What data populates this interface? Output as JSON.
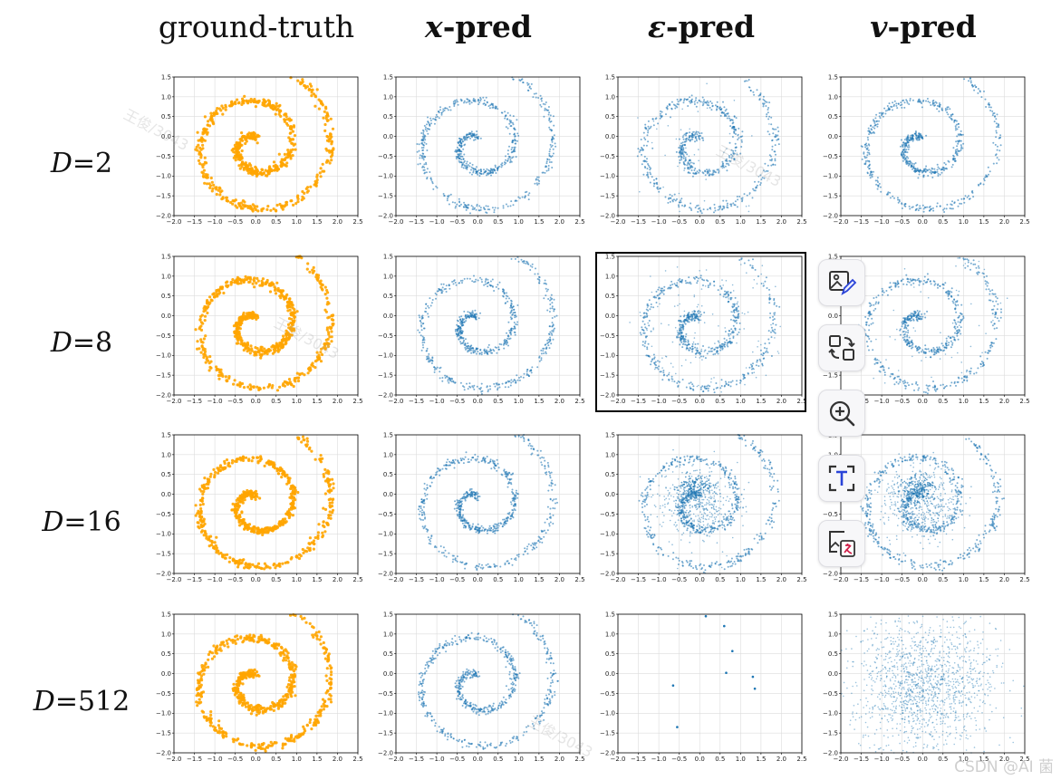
{
  "columns": [
    {
      "label": "ground-truth",
      "symbol": "",
      "suffix": "ground-truth"
    },
    {
      "label": "x-pred",
      "symbol": "x",
      "suffix": "-pred"
    },
    {
      "label": "ε-pred",
      "symbol": "ε",
      "suffix": "-pred"
    },
    {
      "label": "v-pred",
      "symbol": "v",
      "suffix": "-pred"
    }
  ],
  "rows": [
    {
      "label": "D=2",
      "var": "D",
      "eq": "=2"
    },
    {
      "label": "D=8",
      "var": "D",
      "eq": "=8"
    },
    {
      "label": "D=16",
      "var": "D",
      "eq": "=16"
    },
    {
      "label": "D=512",
      "var": "D",
      "eq": "=512"
    }
  ],
  "colors": {
    "ground_truth": "#FFA500",
    "pred": "#1f77b4",
    "grid": "#dcdcdc"
  },
  "toolbar": {
    "buttons": [
      {
        "name": "image-edit-icon"
      },
      {
        "name": "image-convert-icon"
      },
      {
        "name": "zoom-in-icon"
      },
      {
        "name": "text-extract-icon"
      },
      {
        "name": "image-translate-icon"
      }
    ]
  },
  "watermark_credit": "CSDN @AI 菌",
  "watermark_text": "王俊/3043",
  "chart_data": {
    "type": "scatter",
    "grid_layout": "4 rows x 4 columns",
    "xlim": [
      -2.0,
      2.5
    ],
    "ylim": [
      -2.0,
      1.5
    ],
    "xticks": [
      -2.0,
      -1.5,
      -1.0,
      -0.5,
      0.0,
      0.5,
      1.0,
      1.5,
      2.0,
      2.5
    ],
    "yticks": [
      -2.0,
      -1.5,
      -1.0,
      -0.5,
      0.0,
      0.5,
      1.0,
      1.5
    ],
    "xtick_labels": [
      "−2.0",
      "−1.5",
      "−1.0",
      "−0.5",
      "0.0",
      "0.5",
      "1.0",
      "1.5",
      "2.0",
      "2.5"
    ],
    "ytick_labels": [
      "−2.0",
      "−1.5",
      "−1.0",
      "−0.5",
      "0.0",
      "0.5",
      "1.0",
      "1.5"
    ],
    "grid": true,
    "spiral": {
      "center": [
        0.0,
        -0.23
      ],
      "r_start": 0.2,
      "r_end": 2.06,
      "theta_start_turns": 0.0,
      "theta_end_turns": 2.0,
      "theta_offset_deg": 0
    },
    "panels": [
      {
        "row": "D=2",
        "column": "ground-truth",
        "style": "clean",
        "color": "#FFA500"
      },
      {
        "row": "D=2",
        "column": "x-pred",
        "style": "clean",
        "color": "#1f77b4"
      },
      {
        "row": "D=2",
        "column": "ε-pred",
        "style": "slightly-noisy",
        "color": "#1f77b4"
      },
      {
        "row": "D=2",
        "column": "v-pred",
        "style": "clean",
        "color": "#1f77b4"
      },
      {
        "row": "D=8",
        "column": "ground-truth",
        "style": "clean",
        "color": "#FFA500"
      },
      {
        "row": "D=8",
        "column": "x-pred",
        "style": "clean",
        "color": "#1f77b4"
      },
      {
        "row": "D=8",
        "column": "ε-pred",
        "style": "noisy",
        "color": "#1f77b4"
      },
      {
        "row": "D=8",
        "column": "v-pred",
        "style": "slightly-noisy",
        "color": "#1f77b4"
      },
      {
        "row": "D=16",
        "column": "ground-truth",
        "style": "clean",
        "color": "#FFA500"
      },
      {
        "row": "D=16",
        "column": "x-pred",
        "style": "clean",
        "color": "#1f77b4"
      },
      {
        "row": "D=16",
        "column": "ε-pred",
        "style": "degraded",
        "color": "#1f77b4"
      },
      {
        "row": "D=16",
        "column": "v-pred",
        "style": "degraded",
        "color": "#1f77b4"
      },
      {
        "row": "D=512",
        "column": "ground-truth",
        "style": "clean",
        "color": "#FFA500"
      },
      {
        "row": "D=512",
        "column": "x-pred",
        "style": "clean",
        "color": "#1f77b4"
      },
      {
        "row": "D=512",
        "column": "ε-pred",
        "style": "collapsed",
        "color": "#1f77b4",
        "points": [
          [
            0.15,
            1.45
          ],
          [
            0.6,
            1.2
          ],
          [
            0.8,
            0.57
          ],
          [
            0.65,
            0.02
          ],
          [
            1.3,
            -0.08
          ],
          [
            1.35,
            -0.38
          ],
          [
            -0.65,
            -0.3
          ],
          [
            -0.55,
            -1.35
          ]
        ]
      },
      {
        "row": "D=512",
        "column": "v-pred",
        "style": "gaussian-noise",
        "color": "#1f77b4",
        "std": [
          0.85,
          0.85
        ]
      }
    ]
  }
}
